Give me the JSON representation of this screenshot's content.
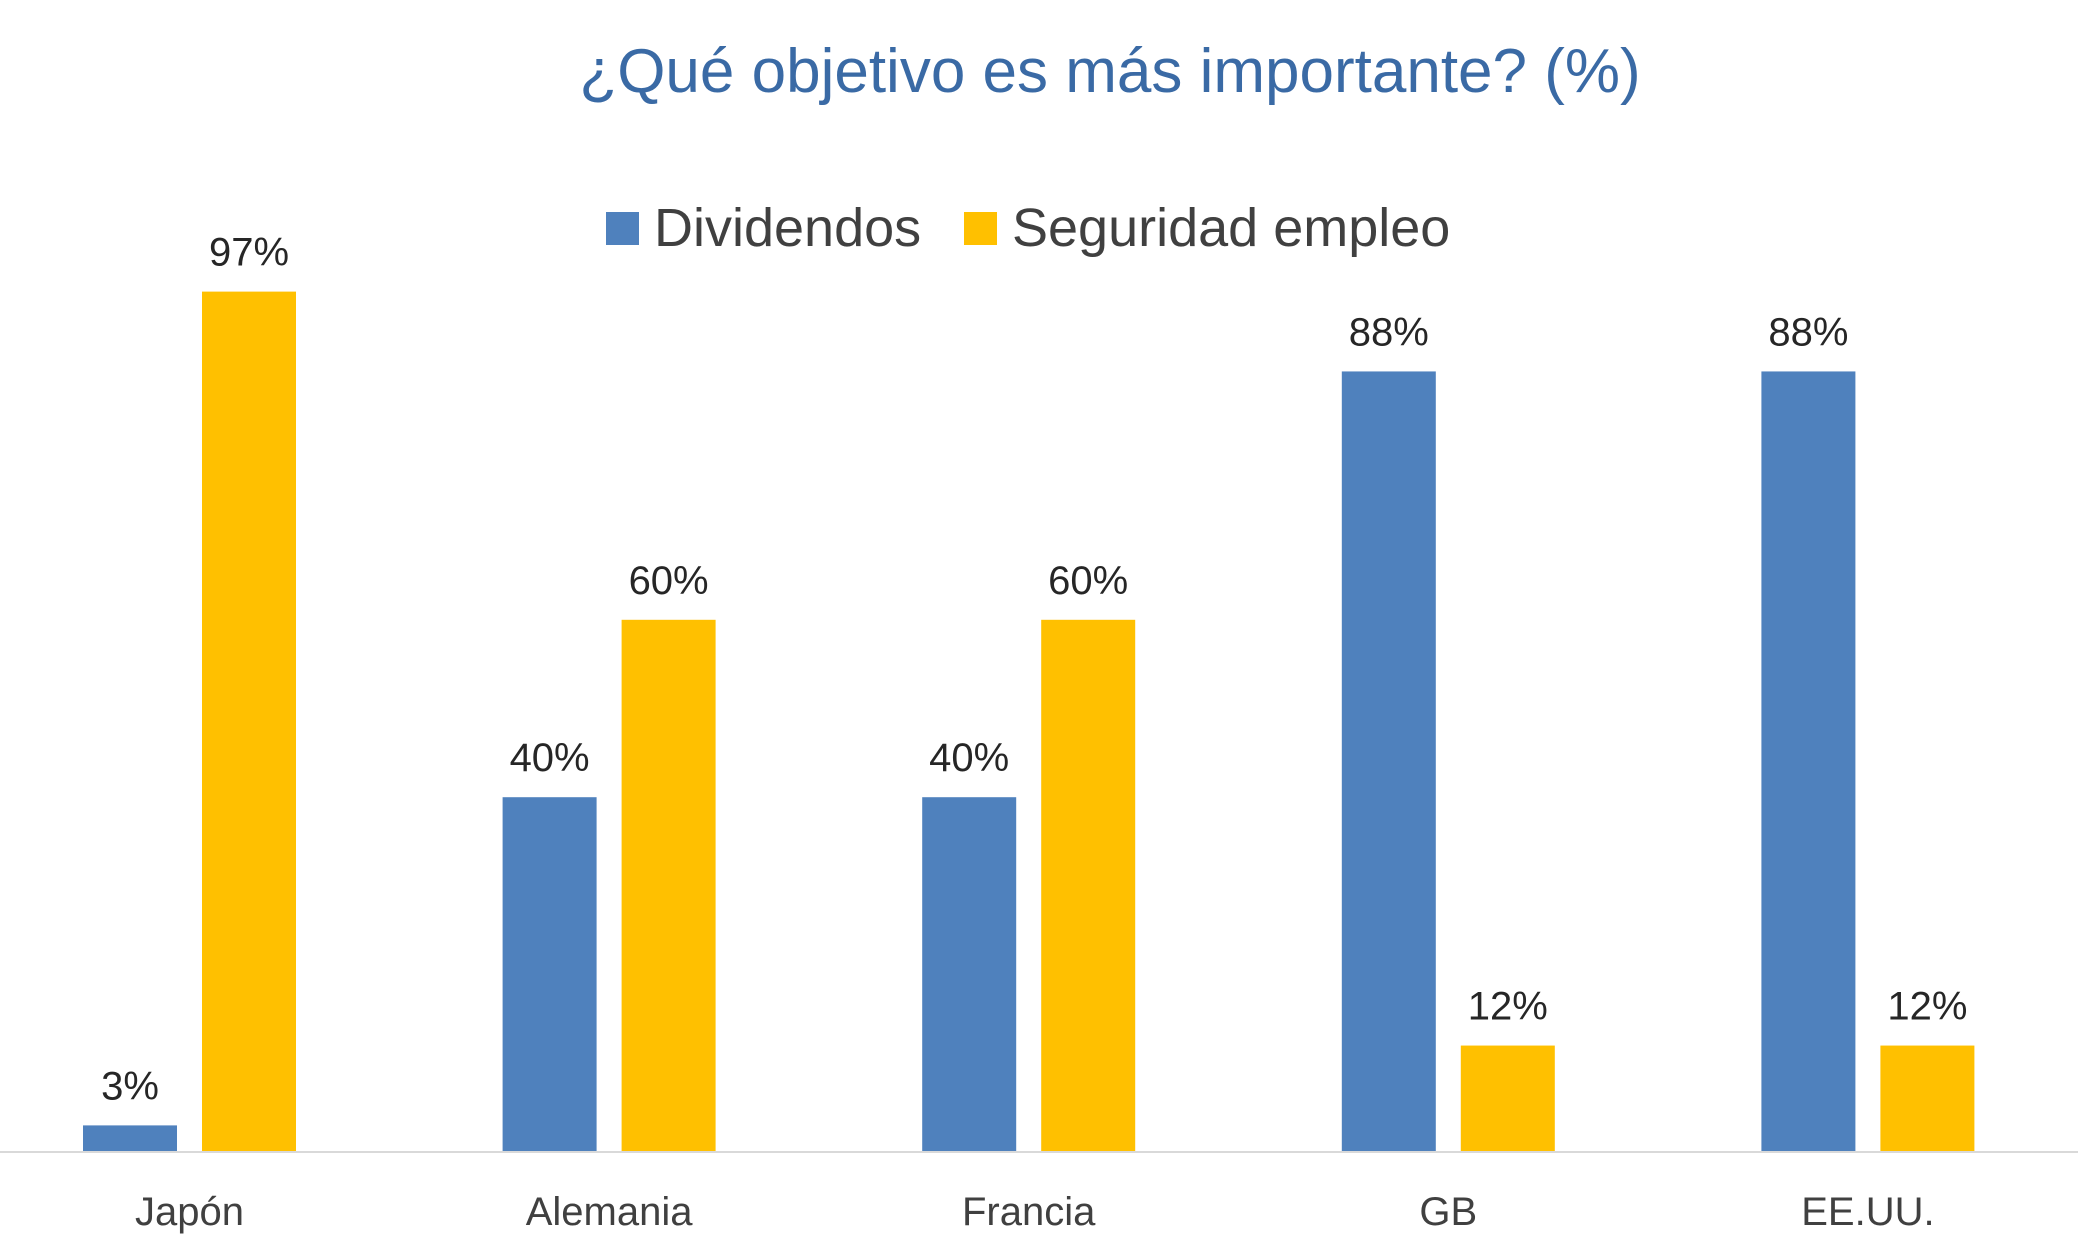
{
  "chart_data": {
    "type": "bar",
    "title": "¿Qué objetivo es más importante? (%)",
    "categories": [
      "Japón",
      "Alemania",
      "Francia",
      "GB",
      "EE.UU."
    ],
    "series": [
      {
        "name": "Dividendos",
        "values": [
          3,
          40,
          40,
          88,
          88
        ],
        "labels": [
          "3%",
          "40%",
          "40%",
          "88%",
          "88%"
        ],
        "color": "#4f81bd"
      },
      {
        "name": "Seguridad empleo",
        "values": [
          97,
          60,
          60,
          12,
          12
        ],
        "labels": [
          "97%",
          "60%",
          "60%",
          "12%",
          "12%"
        ],
        "color": "#ffc000"
      }
    ],
    "ylim": [
      0,
      100
    ],
    "grid": false,
    "legend_position": "top",
    "xlabel": "",
    "ylabel": ""
  },
  "colors": {
    "title": "#3a6aa5",
    "axis_line": "#d9d9d9",
    "text": "#404040"
  }
}
